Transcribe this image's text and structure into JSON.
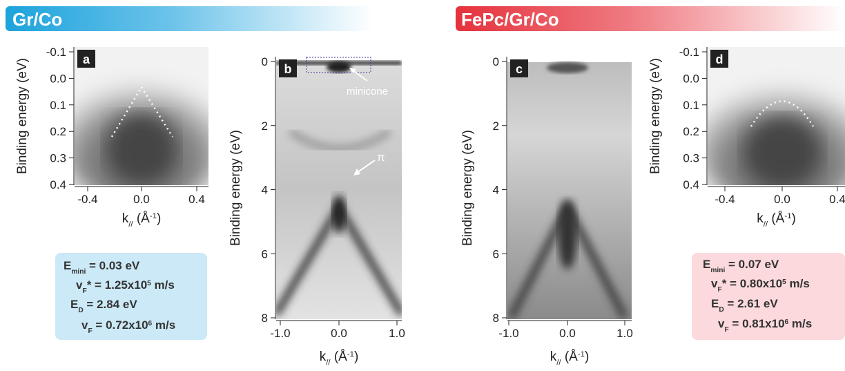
{
  "headers": [
    "Gr/Co",
    "FePc/Gr/Co"
  ],
  "panels": [
    {
      "label": "a",
      "y_label": "Binding energy (eV)",
      "y_ticks": [
        "-0.1",
        "0.0",
        "0.1",
        "0.2",
        "0.3",
        "0.4"
      ],
      "x_ticks": [
        "-0.4",
        "0.0",
        "0.4"
      ],
      "x_label": [
        {
          "t": "k"
        },
        {
          "sub": "//"
        },
        {
          "t": " (Å"
        },
        {
          "sup": "-1"
        },
        {
          "t": ")"
        }
      ],
      "annotations": []
    },
    {
      "label": "b",
      "y_label": "Binding energy (eV)",
      "y_ticks": [
        "0",
        "2",
        "4",
        "6",
        "8"
      ],
      "x_ticks": [
        "-1.0",
        "0.0",
        "1.0"
      ],
      "x_label": [
        {
          "t": "k"
        },
        {
          "sub": "//"
        },
        {
          "t": " (Å"
        },
        {
          "sup": "-1"
        },
        {
          "t": ")"
        }
      ],
      "annotations": [
        "minicone",
        "π"
      ]
    },
    {
      "label": "c",
      "y_label": "Binding energy (eV)",
      "y_ticks": [
        "0",
        "2",
        "4",
        "6",
        "8"
      ],
      "x_ticks": [
        "-1.0",
        "0.0",
        "1.0"
      ],
      "x_label": [
        {
          "t": "k"
        },
        {
          "sub": "//"
        },
        {
          "t": " (Å"
        },
        {
          "sup": "-1"
        },
        {
          "t": ")"
        }
      ],
      "annotations": []
    },
    {
      "label": "d",
      "y_label": "Binding energy (eV)",
      "y_ticks": [
        "-0.1",
        "0.0",
        "0.1",
        "0.2",
        "0.3",
        "0.4"
      ],
      "x_ticks": [
        "-0.4",
        "0.0",
        "0.4"
      ],
      "x_label": [
        {
          "t": "k"
        },
        {
          "sub": "//"
        },
        {
          "t": " (Å"
        },
        {
          "sup": "-1"
        },
        {
          "t": ")"
        }
      ],
      "annotations": []
    }
  ],
  "info_boxes": [
    {
      "lines": [
        [
          {
            "t": "E"
          },
          {
            "sub": "mini"
          },
          {
            "t": " = 0.03 eV"
          }
        ],
        [
          {
            "t": "v"
          },
          {
            "sub": "F"
          },
          {
            "t": "* = 1.25x10"
          },
          {
            "sup": "5"
          },
          {
            "t": " m/s"
          }
        ],
        [
          {
            "t": "E"
          },
          {
            "sub": "D"
          },
          {
            "t": " = 2.84 eV"
          }
        ],
        [
          {
            "t": "v"
          },
          {
            "sub": "F"
          },
          {
            "t": " = 0.72x10"
          },
          {
            "sup": "6"
          },
          {
            "t": " m/s"
          }
        ]
      ]
    },
    {
      "lines": [
        [
          {
            "t": "E"
          },
          {
            "sub": "mini"
          },
          {
            "t": " = 0.07 eV"
          }
        ],
        [
          {
            "t": "v"
          },
          {
            "sub": "F"
          },
          {
            "t": "* = 0.80x10"
          },
          {
            "sup": "5"
          },
          {
            "t": " m/s"
          }
        ],
        [
          {
            "t": "E"
          },
          {
            "sub": "D"
          },
          {
            "t": " = 2.61 eV"
          }
        ],
        [
          {
            "t": "v"
          },
          {
            "sub": "F"
          },
          {
            "t": " = 0.81x10"
          },
          {
            "sup": "6"
          },
          {
            "t": " m/s"
          }
        ]
      ]
    }
  ]
}
